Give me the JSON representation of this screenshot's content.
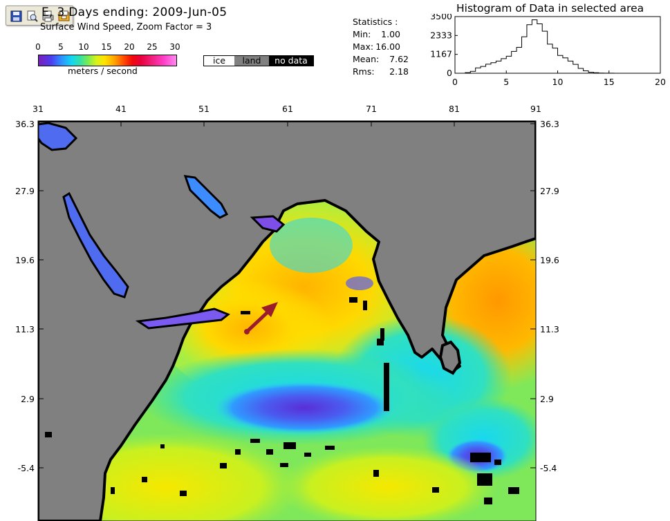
{
  "toolbar": {
    "icons": [
      "save-icon",
      "print-preview-icon",
      "print-icon",
      "export-icon"
    ]
  },
  "title": "E, 3 Days ending: 2009-Jun-05",
  "subtitle": "Surface Wind Speed,  Zoom Factor = 3",
  "colorbar": {
    "ticks": [
      "0",
      "5",
      "10",
      "15",
      "20",
      "25",
      "30"
    ],
    "units": "meters / second"
  },
  "legend": {
    "ice": "ice",
    "land": "land",
    "nodata": "no data",
    "colors": {
      "ice": "#ffffff",
      "land": "#808080",
      "nodata": "#000000"
    }
  },
  "statistics": {
    "heading": "Statistics :",
    "min_label": "Min:",
    "min_value": "1.00",
    "max_label": "Max:",
    "max_value": "16.00",
    "mean_label": "Mean:",
    "mean_value": "7.62",
    "rms_label": "Rms:",
    "rms_value": "2.18"
  },
  "chart_data": {
    "type": "bar",
    "title": "Histogram of Data in selected area",
    "xlabel": "",
    "ylabel": "",
    "xlim": [
      0,
      20
    ],
    "ylim": [
      0,
      3500
    ],
    "x_ticks": [
      "0",
      "5",
      "10",
      "15",
      "20"
    ],
    "y_ticks": [
      "0",
      "1167",
      "2333",
      "3500"
    ],
    "bin_width": 0.5,
    "bins_start": [
      1.0,
      1.5,
      2.0,
      2.5,
      3.0,
      3.5,
      4.0,
      4.5,
      5.0,
      5.5,
      6.0,
      6.5,
      7.0,
      7.5,
      8.0,
      8.5,
      9.0,
      9.5,
      10.0,
      10.5,
      11.0,
      11.5,
      12.0,
      12.5,
      13.0,
      13.5,
      14.0,
      14.5,
      15.0,
      15.5
    ],
    "values": [
      40,
      120,
      330,
      420,
      560,
      650,
      750,
      900,
      1050,
      1350,
      1600,
      2250,
      3000,
      3300,
      3050,
      2600,
      1800,
      1550,
      1100,
      950,
      750,
      550,
      300,
      150,
      60,
      30,
      10,
      5,
      3,
      1
    ]
  },
  "map": {
    "x_ticks": [
      "31",
      "41",
      "51",
      "61",
      "71",
      "81",
      "91"
    ],
    "y_ticks": [
      "36.3",
      "27.9",
      "19.6",
      "11.3",
      "2.9",
      "-5.4"
    ],
    "arrow_color": "#9b1c2c"
  }
}
